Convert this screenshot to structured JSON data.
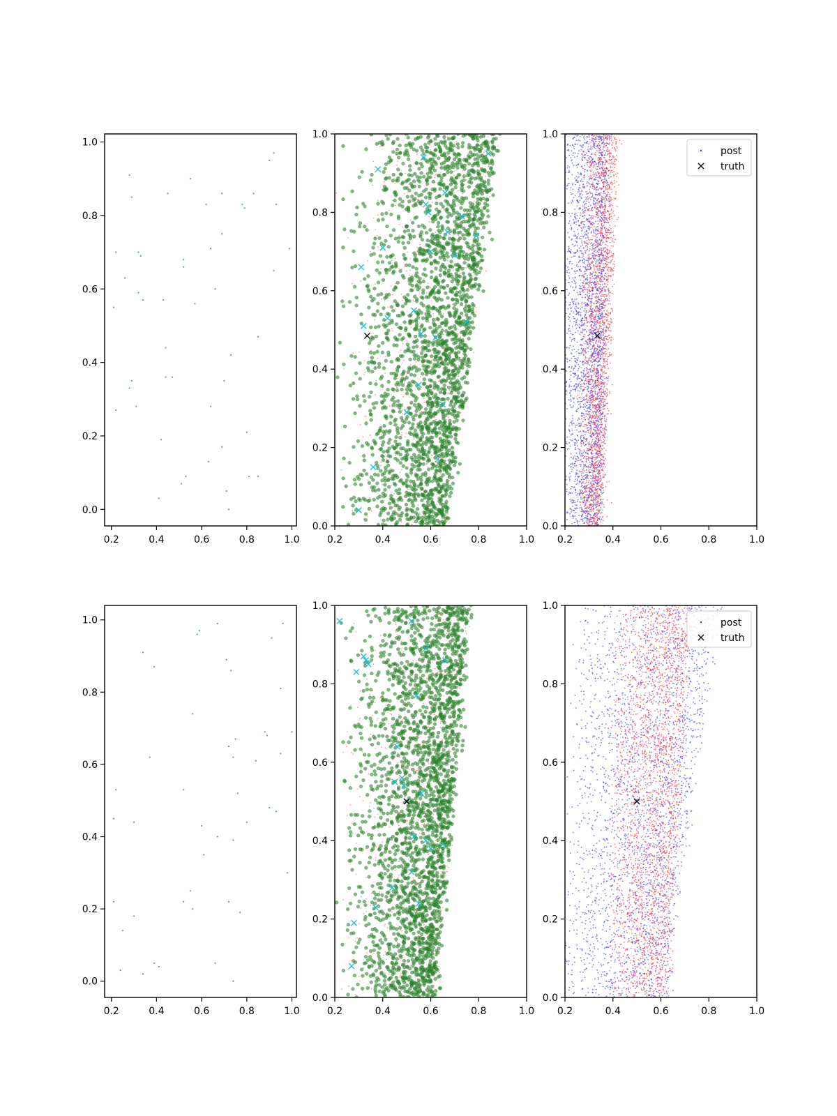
{
  "chart_data": [
    {
      "type": "scatter",
      "panel": "row1-col1",
      "xlim": [
        0.17,
        1.02
      ],
      "ylim": [
        -0.045,
        1.022
      ],
      "xticks": [
        0.2,
        0.4,
        0.6,
        0.8,
        1.0
      ],
      "yticks": [
        0.0,
        0.2,
        0.4,
        0.6,
        0.8,
        1.0
      ],
      "xtick_labels": [
        "0.2",
        "0.4",
        "0.6",
        "0.8",
        "1.0"
      ],
      "ytick_labels": [
        "0.0",
        "0.2",
        "0.4",
        "0.6",
        "0.8",
        "1.0"
      ],
      "grid": false,
      "series": [
        {
          "marker": "dot",
          "color": "#2ca02c",
          "points": [
            [
              0.21,
              0.55
            ],
            [
              0.22,
              0.7
            ],
            [
              0.22,
              0.27
            ],
            [
              0.26,
              0.63
            ],
            [
              0.28,
              0.91
            ],
            [
              0.29,
              0.85
            ],
            [
              0.28,
              0.33
            ],
            [
              0.29,
              0.35
            ],
            [
              0.31,
              0.28
            ],
            [
              0.32,
              0.59
            ],
            [
              0.32,
              0.7
            ],
            [
              0.33,
              0.69
            ],
            [
              0.34,
              0.57
            ],
            [
              0.41,
              0.03
            ],
            [
              0.42,
              0.19
            ],
            [
              0.43,
              0.57
            ],
            [
              0.44,
              0.44
            ],
            [
              0.44,
              0.36
            ],
            [
              0.45,
              0.86
            ],
            [
              0.47,
              0.36
            ],
            [
              0.51,
              0.07
            ],
            [
              0.52,
              0.68
            ],
            [
              0.52,
              0.66
            ],
            [
              0.53,
              0.09
            ],
            [
              0.55,
              0.9
            ],
            [
              0.57,
              0.56
            ],
            [
              0.62,
              0.83
            ],
            [
              0.63,
              0.13
            ],
            [
              0.64,
              0.71
            ],
            [
              0.64,
              0.28
            ],
            [
              0.66,
              0.6
            ],
            [
              0.69,
              0.75
            ],
            [
              0.69,
              0.86
            ],
            [
              0.69,
              0.17
            ],
            [
              0.7,
              0.35
            ],
            [
              0.71,
              0.05
            ],
            [
              0.72,
              0.0
            ],
            [
              0.73,
              0.42
            ],
            [
              0.78,
              0.83
            ],
            [
              0.79,
              0.82
            ],
            [
              0.8,
              0.21
            ],
            [
              0.81,
              0.09
            ],
            [
              0.83,
              0.86
            ],
            [
              0.85,
              0.47
            ],
            [
              0.85,
              0.09
            ],
            [
              0.9,
              0.95
            ],
            [
              0.92,
              0.97
            ],
            [
              0.92,
              0.65
            ],
            [
              0.93,
              0.83
            ],
            [
              0.99,
              0.71
            ]
          ]
        }
      ]
    },
    {
      "type": "scatter",
      "panel": "row1-col2",
      "xlim": [
        0.2,
        1.0
      ],
      "ylim": [
        0.0,
        1.0
      ],
      "xticks": [
        0.2,
        0.4,
        0.6,
        0.8,
        1.0
      ],
      "yticks": [
        0.0,
        0.2,
        0.4,
        0.6,
        0.8,
        1.0
      ],
      "xtick_labels": [
        "0.2",
        "0.4",
        "0.6",
        "0.8",
        "1.0"
      ],
      "ytick_labels": [
        "0.0",
        "0.2",
        "0.4",
        "0.6",
        "0.8",
        "1.0"
      ],
      "grid": false,
      "density": {
        "green_count": 2600,
        "red_count": 700,
        "edge_left": [
          0.2,
          0.2
        ],
        "edge_right": [
          0.66,
          0.88
        ],
        "green_color": "#2e8b2e",
        "red_color": "#ff3b3b"
      },
      "crosses": {
        "color": "#17becf",
        "points": [
          [
            0.3,
            0.04
          ],
          [
            0.31,
            0.66
          ],
          [
            0.32,
            0.51
          ],
          [
            0.36,
            0.15
          ],
          [
            0.38,
            0.91
          ],
          [
            0.4,
            0.71
          ],
          [
            0.42,
            0.53
          ],
          [
            0.5,
            0.29
          ],
          [
            0.53,
            0.55
          ],
          [
            0.55,
            0.36
          ],
          [
            0.56,
            0.49
          ],
          [
            0.57,
            0.94
          ],
          [
            0.58,
            0.82
          ],
          [
            0.59,
            0.8
          ],
          [
            0.6,
            0.7
          ],
          [
            0.62,
            0.48
          ],
          [
            0.63,
            0.17
          ],
          [
            0.65,
            0.31
          ],
          [
            0.66,
            0.85
          ],
          [
            0.67,
            0.75
          ],
          [
            0.7,
            0.69
          ],
          [
            0.73,
            0.79
          ],
          [
            0.75,
            0.52
          ],
          [
            0.79,
            0.74
          ],
          [
            0.84,
            0.95
          ]
        ]
      },
      "truth": {
        "x": 0.335,
        "y": 0.485,
        "color": "#000000"
      }
    },
    {
      "type": "scatter",
      "panel": "row1-col3",
      "xlim": [
        0.2,
        1.0
      ],
      "ylim": [
        0.0,
        1.0
      ],
      "xticks": [
        0.2,
        0.4,
        0.6,
        0.8,
        1.0
      ],
      "yticks": [
        0.0,
        0.2,
        0.4,
        0.6,
        0.8,
        1.0
      ],
      "xtick_labels": [
        "0.2",
        "0.4",
        "0.6",
        "0.8",
        "1.0"
      ],
      "ytick_labels": [
        "0.0",
        "0.2",
        "0.4",
        "0.6",
        "0.8",
        "1.0"
      ],
      "grid": false,
      "density": {
        "blue_count": 2600,
        "red_count": 2000,
        "blue_color": "#3030ff",
        "red_color": "#ff2a2a",
        "blue_edge_left": [
          0.2,
          0.2
        ],
        "blue_edge_right": [
          0.35,
          0.38
        ],
        "red_edge_left": [
          0.26,
          0.28
        ],
        "red_edge_right": [
          0.35,
          0.42
        ]
      },
      "truth": {
        "x": 0.335,
        "y": 0.485,
        "color": "#000000"
      },
      "legend": {
        "placement": "top-right",
        "entries": [
          {
            "label": "post",
            "marker": "dot"
          },
          {
            "label": "truth",
            "marker": "x"
          }
        ]
      }
    },
    {
      "type": "scatter",
      "panel": "row2-col1",
      "xlim": [
        0.17,
        1.02
      ],
      "ylim": [
        -0.045,
        1.04
      ],
      "xticks": [
        0.2,
        0.4,
        0.6,
        0.8,
        1.0
      ],
      "yticks": [
        0.0,
        0.2,
        0.4,
        0.6,
        0.8,
        1.0
      ],
      "xtick_labels": [
        "0.2",
        "0.4",
        "0.6",
        "0.8",
        "1.0"
      ],
      "ytick_labels": [
        "0.0",
        "0.2",
        "0.4",
        "0.6",
        "0.8",
        "1.0"
      ],
      "grid": false,
      "series": [
        {
          "marker": "dot",
          "color": "#2ca02c",
          "points": [
            [
              0.21,
              0.45
            ],
            [
              0.21,
              0.22
            ],
            [
              0.22,
              0.53
            ],
            [
              0.24,
              0.03
            ],
            [
              0.25,
              0.14
            ],
            [
              0.3,
              0.44
            ],
            [
              0.3,
              0.18
            ],
            [
              0.34,
              0.02
            ],
            [
              0.34,
              0.91
            ],
            [
              0.37,
              0.62
            ],
            [
              0.39,
              0.87
            ],
            [
              0.39,
              0.05
            ],
            [
              0.41,
              0.04
            ],
            [
              0.52,
              0.53
            ],
            [
              0.52,
              0.22
            ],
            [
              0.55,
              0.25
            ],
            [
              0.56,
              0.74
            ],
            [
              0.56,
              0.2
            ],
            [
              0.58,
              0.96
            ],
            [
              0.59,
              0.97
            ],
            [
              0.6,
              0.43
            ],
            [
              0.61,
              0.35
            ],
            [
              0.66,
              0.05
            ],
            [
              0.67,
              0.4
            ],
            [
              0.67,
              0.99
            ],
            [
              0.71,
              0.89
            ],
            [
              0.72,
              0.65
            ],
            [
              0.72,
              0.22
            ],
            [
              0.73,
              0.86
            ],
            [
              0.74,
              0.62
            ],
            [
              0.74,
              0.39
            ],
            [
              0.74,
              0.0
            ],
            [
              0.75,
              0.67
            ],
            [
              0.76,
              0.52
            ],
            [
              0.77,
              0.19
            ],
            [
              0.8,
              0.44
            ],
            [
              0.84,
              0.61
            ],
            [
              0.88,
              0.69
            ],
            [
              0.89,
              0.68
            ],
            [
              0.9,
              0.48
            ],
            [
              0.91,
              0.95
            ],
            [
              0.93,
              0.47
            ],
            [
              0.95,
              0.63
            ],
            [
              0.95,
              0.81
            ],
            [
              0.96,
              0.99
            ],
            [
              0.98,
              0.3
            ],
            [
              1.0,
              0.69
            ]
          ]
        }
      ]
    },
    {
      "type": "scatter",
      "panel": "row2-col2",
      "xlim": [
        0.2,
        1.0
      ],
      "ylim": [
        0.0,
        1.0
      ],
      "xticks": [
        0.2,
        0.4,
        0.6,
        0.8,
        1.0
      ],
      "yticks": [
        0.0,
        0.2,
        0.4,
        0.6,
        0.8,
        1.0
      ],
      "xtick_labels": [
        "0.2",
        "0.4",
        "0.6",
        "0.8",
        "1.0"
      ],
      "ytick_labels": [
        "0.0",
        "0.2",
        "0.4",
        "0.6",
        "0.8",
        "1.0"
      ],
      "grid": false,
      "density": {
        "green_count": 2600,
        "red_count": 700,
        "edge_left": [
          0.2,
          0.2
        ],
        "edge_right": [
          0.62,
          0.76
        ],
        "green_color": "#2e8b2e",
        "red_color": "#ff3b3b"
      },
      "crosses": {
        "color": "#17becf",
        "points": [
          [
            0.22,
            0.96
          ],
          [
            0.27,
            0.08
          ],
          [
            0.28,
            0.19
          ],
          [
            0.29,
            0.83
          ],
          [
            0.32,
            0.87
          ],
          [
            0.33,
            0.86
          ],
          [
            0.34,
            0.85
          ],
          [
            0.37,
            0.23
          ],
          [
            0.44,
            0.28
          ],
          [
            0.45,
            0.55
          ],
          [
            0.46,
            0.64
          ],
          [
            0.48,
            0.56
          ],
          [
            0.49,
            0.54
          ],
          [
            0.5,
            0.5
          ],
          [
            0.52,
            0.32
          ],
          [
            0.53,
            0.41
          ],
          [
            0.54,
            0.77
          ],
          [
            0.55,
            0.24
          ],
          [
            0.56,
            0.52
          ],
          [
            0.58,
            0.4
          ],
          [
            0.58,
            0.89
          ],
          [
            0.6,
            0.38
          ],
          [
            0.65,
            0.39
          ],
          [
            0.66,
            0.86
          ],
          [
            0.52,
            0.96
          ]
        ]
      },
      "truth": {
        "x": 0.5,
        "y": 0.5,
        "color": "#000000"
      }
    },
    {
      "type": "scatter",
      "panel": "row2-col3",
      "xlim": [
        0.2,
        1.0
      ],
      "ylim": [
        0.0,
        1.0
      ],
      "xticks": [
        0.2,
        0.4,
        0.6,
        0.8,
        1.0
      ],
      "yticks": [
        0.0,
        0.2,
        0.4,
        0.6,
        0.8,
        1.0
      ],
      "xtick_labels": [
        "0.2",
        "0.4",
        "0.6",
        "0.8",
        "1.0"
      ],
      "ytick_labels": [
        "0.0",
        "0.2",
        "0.4",
        "0.6",
        "0.8",
        "1.0"
      ],
      "grid": false,
      "density": {
        "blue_count": 2600,
        "red_count": 2300,
        "blue_color": "#3030ff",
        "red_color": "#ff2a2a",
        "blue_edge_left": [
          0.2,
          0.24
        ],
        "blue_edge_right": [
          0.62,
          0.84
        ],
        "red_edge_left": [
          0.36,
          0.4
        ],
        "red_edge_right": [
          0.62,
          0.72
        ]
      },
      "truth": {
        "x": 0.5,
        "y": 0.5,
        "color": "#000000"
      },
      "legend": {
        "placement": "top-right",
        "entries": [
          {
            "label": "post",
            "marker": "dot"
          },
          {
            "label": "truth",
            "marker": "x"
          }
        ]
      }
    }
  ]
}
